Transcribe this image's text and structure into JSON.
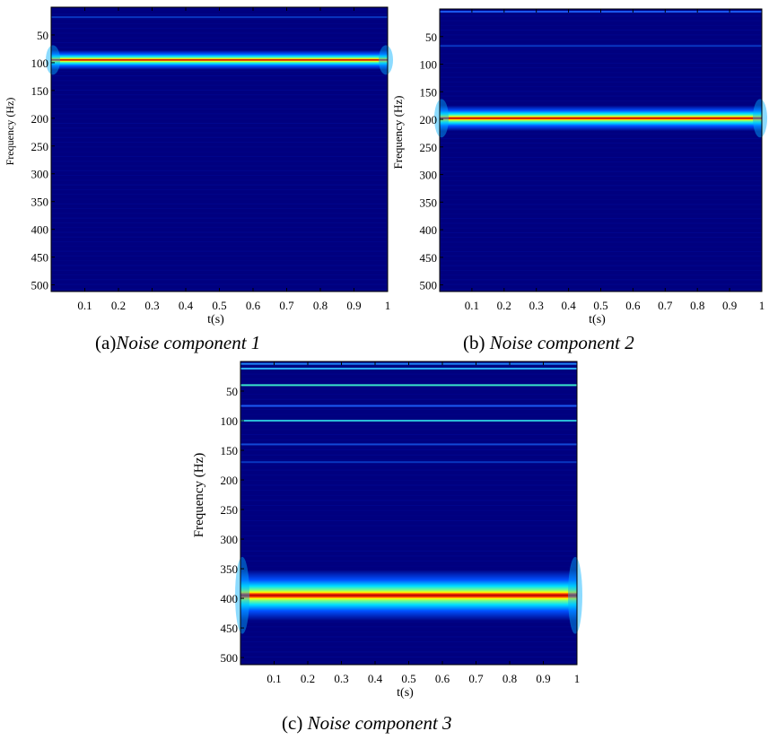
{
  "chart_data": [
    {
      "type": "heatmap",
      "panel": "a",
      "title": "",
      "xlabel": "t(s)",
      "ylabel": "Frequency (Hz)",
      "xlim": [
        0,
        1
      ],
      "ylim": [
        0,
        512
      ],
      "y_reversed": true,
      "x_ticks": [
        "0.1",
        "0.2",
        "0.3",
        "0.4",
        "0.5",
        "0.6",
        "0.7",
        "0.8",
        "0.9",
        "1"
      ],
      "y_ticks": [
        "50",
        "100",
        "150",
        "200",
        "250",
        "300",
        "350",
        "400",
        "450",
        "500"
      ],
      "colormap": "jet",
      "background_color": "#00007f",
      "bands": [
        {
          "freq_hz": 95,
          "peak_level": "dark red",
          "peak_color": "#8b0000"
        },
        {
          "freq_hz": 18,
          "peak_level": "faint",
          "peak_color": "#0a3cc8"
        }
      ],
      "caption_prefix": "(a)",
      "caption": "Noise component 1"
    },
    {
      "type": "heatmap",
      "panel": "b",
      "title": "",
      "xlabel": "t(s)",
      "ylabel": "Frequency (Hz)",
      "xlim": [
        0,
        1
      ],
      "ylim": [
        0,
        512
      ],
      "y_reversed": true,
      "x_ticks": [
        "0.1",
        "0.2",
        "0.3",
        "0.4",
        "0.5",
        "0.6",
        "0.7",
        "0.8",
        "0.9",
        "1"
      ],
      "y_ticks": [
        "50",
        "100",
        "150",
        "200",
        "250",
        "300",
        "350",
        "400",
        "450",
        "500"
      ],
      "colormap": "jet",
      "background_color": "#00007f",
      "bands": [
        {
          "freq_hz": 198,
          "peak_level": "dark red",
          "peak_color": "#8b0000"
        },
        {
          "freq_hz": 5,
          "peak_level": "faint",
          "peak_color": "#1e64ff"
        },
        {
          "freq_hz": 67,
          "peak_level": "faint",
          "peak_color": "#0a3cc8"
        }
      ],
      "caption_prefix": "(b) ",
      "caption": "Noise component 2"
    },
    {
      "type": "heatmap",
      "panel": "c",
      "title": "",
      "xlabel": "t(s)",
      "ylabel": "Frequency (Hz)",
      "xlim": [
        0,
        1
      ],
      "ylim": [
        0,
        512
      ],
      "y_reversed": true,
      "x_ticks": [
        "0.1",
        "0.2",
        "0.3",
        "0.4",
        "0.5",
        "0.6",
        "0.7",
        "0.8",
        "0.9",
        "1"
      ],
      "y_ticks": [
        "50",
        "100",
        "150",
        "200",
        "250",
        "300",
        "350",
        "400",
        "450",
        "500"
      ],
      "colormap": "jet",
      "background_color": "#00007f",
      "bands": [
        {
          "freq_hz": 395,
          "peak_level": "dark red",
          "peak_color": "#b00000"
        },
        {
          "freq_hz": 40,
          "peak_level": "cyan",
          "peak_color": "#40ffd0"
        },
        {
          "freq_hz": 12,
          "peak_level": "light",
          "peak_color": "#30c0ff"
        },
        {
          "freq_hz": 4,
          "peak_level": "light",
          "peak_color": "#2090ff"
        },
        {
          "freq_hz": 100,
          "peak_level": "cyan",
          "peak_color": "#30d0e0"
        },
        {
          "freq_hz": 75,
          "peak_level": "blue",
          "peak_color": "#1e64ff"
        },
        {
          "freq_hz": 140,
          "peak_level": "faint",
          "peak_color": "#1450e0"
        },
        {
          "freq_hz": 170,
          "peak_level": "faint",
          "peak_color": "#0a3cc8"
        }
      ],
      "caption_prefix": "(c) ",
      "caption": "Noise component 3"
    }
  ]
}
